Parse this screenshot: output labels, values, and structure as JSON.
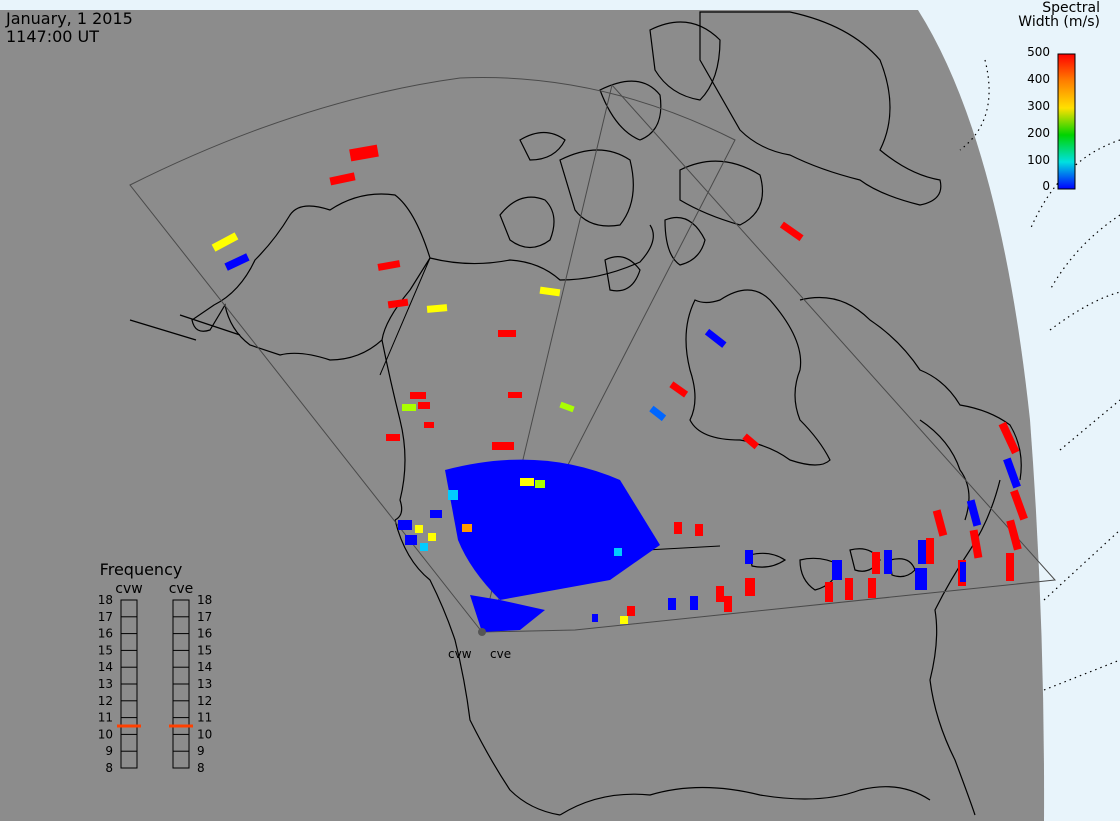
{
  "header": {
    "date": "January, 1 2015",
    "time": "1147:00 UT"
  },
  "colorbar": {
    "title_line1": "Spectral",
    "title_line2": "Width (m/s)",
    "ticks": [
      "500",
      "400",
      "300",
      "200",
      "100",
      "0"
    ],
    "colors": [
      "#ff0000",
      "#ff7f00",
      "#ffe000",
      "#00d400",
      "#00e0e0",
      "#0000ff"
    ]
  },
  "radars": {
    "west": "cvw",
    "east": "cve"
  },
  "frequency": {
    "title": "Frequency",
    "labels": [
      "18",
      "17",
      "16",
      "15",
      "14",
      "13",
      "12",
      "11",
      "10",
      "9",
      "8"
    ],
    "cvw_mhz": 10.5,
    "cve_mhz": 10.5,
    "marker_color": "#ff4000"
  },
  "colors": {
    "land_background": "#8c8c8c",
    "ocean_dayside": "#e8f4fb",
    "coastline": "#000000",
    "fov_outline": "#4a4a4a",
    "grid_dots": "#000000"
  }
}
